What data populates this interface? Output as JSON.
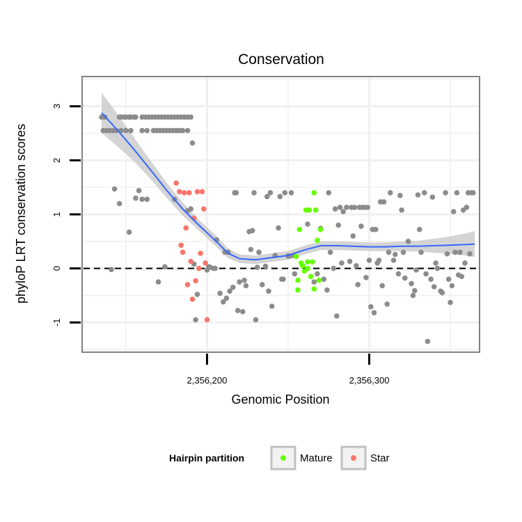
{
  "chart_data": {
    "type": "scatter",
    "title": "Conservation",
    "xlabel": "Genomic Position",
    "ylabel": "phyloP LRT conservation scores",
    "xlim": [
      2356123,
      2356368
    ],
    "ylim": [
      -1.55,
      3.55
    ],
    "x_ticks": [
      2356200,
      2356300
    ],
    "x_tick_labels": [
      "2,356,200",
      "2,356,300"
    ],
    "y_ticks": [
      -1,
      0,
      1,
      2,
      3
    ],
    "y_tick_labels": [
      "-1",
      "0",
      "1",
      "2",
      "3"
    ],
    "reference_line": {
      "y": 0,
      "style": "dashed"
    },
    "grid": true,
    "legend": {
      "title": "Hairpin partition",
      "position": "bottom",
      "entries": [
        {
          "name": "Mature",
          "color": "#66ff00"
        },
        {
          "name": "Star",
          "color": "#f8766d"
        }
      ]
    },
    "colors": {
      "background": "#d9d9d9",
      "points_default": "#8c8c8c",
      "smooth_line": "#3366ff",
      "smooth_band": "#cccccc"
    },
    "series": [
      {
        "name": "Other",
        "color": "#8c8c8c",
        "points": [
          [
            2356135,
            2.8
          ],
          [
            2356137,
            2.8
          ],
          [
            2356136,
            2.55
          ],
          [
            2356138,
            2.55
          ],
          [
            2356140,
            2.55
          ],
          [
            2356142,
            2.55
          ],
          [
            2356144,
            2.55
          ],
          [
            2356146,
            2.8
          ],
          [
            2356147,
            2.8
          ],
          [
            2356149,
            2.8
          ],
          [
            2356150,
            2.8
          ],
          [
            2356152,
            2.8
          ],
          [
            2356153,
            2.8
          ],
          [
            2356155,
            2.8
          ],
          [
            2356156,
            2.8
          ],
          [
            2356147,
            2.55
          ],
          [
            2356150,
            2.55
          ],
          [
            2356153,
            2.55
          ],
          [
            2356160,
            2.55
          ],
          [
            2356163,
            2.55
          ],
          [
            2356160,
            2.8
          ],
          [
            2356162,
            2.8
          ],
          [
            2356164,
            2.8
          ],
          [
            2356166,
            2.8
          ],
          [
            2356168,
            2.8
          ],
          [
            2356170,
            2.8
          ],
          [
            2356172,
            2.8
          ],
          [
            2356174,
            2.8
          ],
          [
            2356176,
            2.8
          ],
          [
            2356178,
            2.8
          ],
          [
            2356180,
            2.8
          ],
          [
            2356182,
            2.8
          ],
          [
            2356184,
            2.8
          ],
          [
            2356186,
            2.8
          ],
          [
            2356188,
            2.8
          ],
          [
            2356190,
            2.8
          ],
          [
            2356167,
            2.55
          ],
          [
            2356169,
            2.55
          ],
          [
            2356171,
            2.55
          ],
          [
            2356173,
            2.55
          ],
          [
            2356175,
            2.55
          ],
          [
            2356177,
            2.55
          ],
          [
            2356179,
            2.55
          ],
          [
            2356181,
            2.55
          ],
          [
            2356183,
            2.55
          ],
          [
            2356185,
            2.55
          ],
          [
            2356188,
            2.55
          ],
          [
            2356191,
            2.32
          ],
          [
            2356141,
            -0.02
          ],
          [
            2356143,
            1.47
          ],
          [
            2356146,
            1.2
          ],
          [
            2356152,
            0.67
          ],
          [
            2356156,
            1.3
          ],
          [
            2356158,
            1.44
          ],
          [
            2356160,
            1.28
          ],
          [
            2356163,
            1.28
          ],
          [
            2356170,
            -0.25
          ],
          [
            2356174,
            0.03
          ],
          [
            2356180,
            1.28
          ],
          [
            2356188,
            1.07
          ],
          [
            2356190,
            1.1
          ],
          [
            2356192,
            0.08
          ],
          [
            2356193,
            -0.95
          ],
          [
            2356194,
            -0.48
          ],
          [
            2356200,
            -0.03
          ],
          [
            2356201,
            0.03
          ],
          [
            2356202,
            0.02
          ],
          [
            2356204,
            0.0
          ],
          [
            2356205,
            0.0
          ],
          [
            2356206,
            0.53
          ],
          [
            2356208,
            -0.46
          ],
          [
            2356210,
            -0.62
          ],
          [
            2356211,
            0.3
          ],
          [
            2356212,
            -0.55
          ],
          [
            2356213,
            0.3
          ],
          [
            2356214,
            -0.42
          ],
          [
            2356216,
            -0.35
          ],
          [
            2356217,
            1.4
          ],
          [
            2356218,
            1.4
          ],
          [
            2356219,
            -0.78
          ],
          [
            2356220,
            -0.25
          ],
          [
            2356222,
            -0.8
          ],
          [
            2356223,
            -0.22
          ],
          [
            2356224,
            -0.32
          ],
          [
            2356226,
            0.68
          ],
          [
            2356227,
            0.35
          ],
          [
            2356228,
            0.7
          ],
          [
            2356229,
            1.4
          ],
          [
            2356230,
            -0.95
          ],
          [
            2356231,
            0.02
          ],
          [
            2356232,
            0.3
          ],
          [
            2356234,
            -0.3
          ],
          [
            2356236,
            0.04
          ],
          [
            2356237,
            1.33
          ],
          [
            2356238,
            -0.42
          ],
          [
            2356239,
            1.4
          ],
          [
            2356240,
            -0.7
          ],
          [
            2356242,
            0.24
          ],
          [
            2356244,
            0.75
          ],
          [
            2356245,
            1.33
          ],
          [
            2356246,
            -0.2
          ],
          [
            2356247,
            -0.2
          ],
          [
            2356248,
            1.4
          ],
          [
            2356250,
            0.23
          ],
          [
            2356251,
            0.23
          ],
          [
            2356252,
            1.4
          ],
          [
            2356253,
            0.24
          ],
          [
            2356254,
            -0.1
          ],
          [
            2356262,
            0.82
          ],
          [
            2356264,
            -0.15
          ],
          [
            2356266,
            -0.25
          ],
          [
            2356268,
            -0.1
          ],
          [
            2356270,
            0.74
          ],
          [
            2356272,
            -0.2
          ],
          [
            2356274,
            -0.4
          ],
          [
            2356275,
            1.4
          ],
          [
            2356276,
            0.3
          ],
          [
            2356278,
            0.0
          ],
          [
            2356279,
            1.1
          ],
          [
            2356280,
            -0.88
          ],
          [
            2356281,
            0.8
          ],
          [
            2356282,
            1.13
          ],
          [
            2356283,
            0.1
          ],
          [
            2356284,
            1.05
          ],
          [
            2356286,
            1.13
          ],
          [
            2356288,
            0.13
          ],
          [
            2356289,
            1.13
          ],
          [
            2356290,
            0.6
          ],
          [
            2356291,
            1.13
          ],
          [
            2356292,
            0.05
          ],
          [
            2356293,
            -0.3
          ],
          [
            2356294,
            1.13
          ],
          [
            2356295,
            0.78
          ],
          [
            2356296,
            1.13
          ],
          [
            2356297,
            1.13
          ],
          [
            2356298,
            -0.17
          ],
          [
            2356299,
            1.13
          ],
          [
            2356300,
            0.15
          ],
          [
            2356301,
            -0.71
          ],
          [
            2356302,
            0.72
          ],
          [
            2356303,
            -0.82
          ],
          [
            2356304,
            0.72
          ],
          [
            2356305,
            0.1
          ],
          [
            2356306,
            0.15
          ],
          [
            2356307,
            1.23
          ],
          [
            2356308,
            -0.32
          ],
          [
            2356309,
            1.23
          ],
          [
            2356311,
            -0.66
          ],
          [
            2356312,
            0.3
          ],
          [
            2356313,
            1.4
          ],
          [
            2356315,
            0.15
          ],
          [
            2356316,
            0.26
          ],
          [
            2356318,
            -0.1
          ],
          [
            2356319,
            1.35
          ],
          [
            2356320,
            1.08
          ],
          [
            2356321,
            0.3
          ],
          [
            2356322,
            -0.18
          ],
          [
            2356324,
            0.5
          ],
          [
            2356326,
            -0.28
          ],
          [
            2356327,
            -0.5
          ],
          [
            2356328,
            -0.41
          ],
          [
            2356329,
            -0.03
          ],
          [
            2356330,
            1.36
          ],
          [
            2356331,
            0.72
          ],
          [
            2356332,
            0.3
          ],
          [
            2356334,
            1.4
          ],
          [
            2356335,
            -0.1
          ],
          [
            2356336,
            -1.35
          ],
          [
            2356338,
            -0.2
          ],
          [
            2356339,
            1.32
          ],
          [
            2356340,
            -0.34
          ],
          [
            2356341,
            0.1
          ],
          [
            2356342,
            0.0
          ],
          [
            2356344,
            -0.42
          ],
          [
            2356345,
            -0.45
          ],
          [
            2356347,
            1.4
          ],
          [
            2356348,
            0.27
          ],
          [
            2356349,
            -0.2
          ],
          [
            2356350,
            -0.63
          ],
          [
            2356351,
            -0.32
          ],
          [
            2356352,
            1.05
          ],
          [
            2356353,
            0.3
          ],
          [
            2356354,
            1.4
          ],
          [
            2356355,
            -0.12
          ],
          [
            2356356,
            0.3
          ],
          [
            2356357,
            -0.15
          ],
          [
            2356358,
            1.08
          ],
          [
            2356359,
            0.1
          ],
          [
            2356360,
            1.13
          ],
          [
            2356361,
            1.4
          ],
          [
            2356362,
            0.27
          ],
          [
            2356363,
            1.4
          ],
          [
            2356364,
            1.4
          ]
        ]
      },
      {
        "name": "Star",
        "color": "#f8766d",
        "points": [
          [
            2356181,
            1.58
          ],
          [
            2356183,
            1.42
          ],
          [
            2356184,
            0.43
          ],
          [
            2356185,
            0.3
          ],
          [
            2356186,
            1.4
          ],
          [
            2356187,
            0.75
          ],
          [
            2356188,
            -0.3
          ],
          [
            2356189,
            1.4
          ],
          [
            2356190,
            0.13
          ],
          [
            2356191,
            -0.57
          ],
          [
            2356192,
            0.93
          ],
          [
            2356193,
            -0.23
          ],
          [
            2356194,
            1.42
          ],
          [
            2356195,
            0.0
          ],
          [
            2356196,
            0.28
          ],
          [
            2356197,
            1.42
          ],
          [
            2356198,
            1.1
          ],
          [
            2356199,
            0.1
          ],
          [
            2356200,
            -0.95
          ]
        ]
      },
      {
        "name": "Mature",
        "color": "#66ff00",
        "points": [
          [
            2356255,
            0.22
          ],
          [
            2356256,
            -0.4
          ],
          [
            2356256,
            -0.22
          ],
          [
            2356257,
            0.72
          ],
          [
            2356258,
            0.1
          ],
          [
            2356259,
            0.05
          ],
          [
            2356260,
            -0.05
          ],
          [
            2356261,
            1.08
          ],
          [
            2356262,
            0.0
          ],
          [
            2356262,
            0.12
          ],
          [
            2356263,
            1.08
          ],
          [
            2356264,
            -0.15
          ],
          [
            2356265,
            0.12
          ],
          [
            2356266,
            1.4
          ],
          [
            2356266,
            -0.38
          ],
          [
            2356267,
            1.08
          ],
          [
            2356268,
            0.52
          ],
          [
            2356269,
            -0.22
          ],
          [
            2356270,
            0.72
          ]
        ]
      }
    ],
    "smooth": {
      "method": "loess",
      "fit": [
        [
          2356135,
          2.88
        ],
        [
          2356145,
          2.55
        ],
        [
          2356155,
          2.2
        ],
        [
          2356165,
          1.83
        ],
        [
          2356175,
          1.45
        ],
        [
          2356185,
          1.1
        ],
        [
          2356195,
          0.8
        ],
        [
          2356205,
          0.52
        ],
        [
          2356213,
          0.28
        ],
        [
          2356220,
          0.18
        ],
        [
          2356230,
          0.16
        ],
        [
          2356240,
          0.2
        ],
        [
          2356250,
          0.24
        ],
        [
          2356260,
          0.34
        ],
        [
          2356270,
          0.42
        ],
        [
          2356280,
          0.42
        ],
        [
          2356290,
          0.41
        ],
        [
          2356300,
          0.4
        ],
        [
          2356310,
          0.4
        ],
        [
          2356320,
          0.41
        ],
        [
          2356330,
          0.41
        ],
        [
          2356340,
          0.42
        ],
        [
          2356350,
          0.43
        ],
        [
          2356358,
          0.44
        ],
        [
          2356365,
          0.45
        ]
      ],
      "band_halfwidth": [
        0.37,
        0.3,
        0.22,
        0.17,
        0.14,
        0.12,
        0.1,
        0.1,
        0.09,
        0.08,
        0.08,
        0.08,
        0.08,
        0.08,
        0.08,
        0.08,
        0.08,
        0.08,
        0.08,
        0.09,
        0.1,
        0.13,
        0.16,
        0.2,
        0.24
      ]
    }
  }
}
